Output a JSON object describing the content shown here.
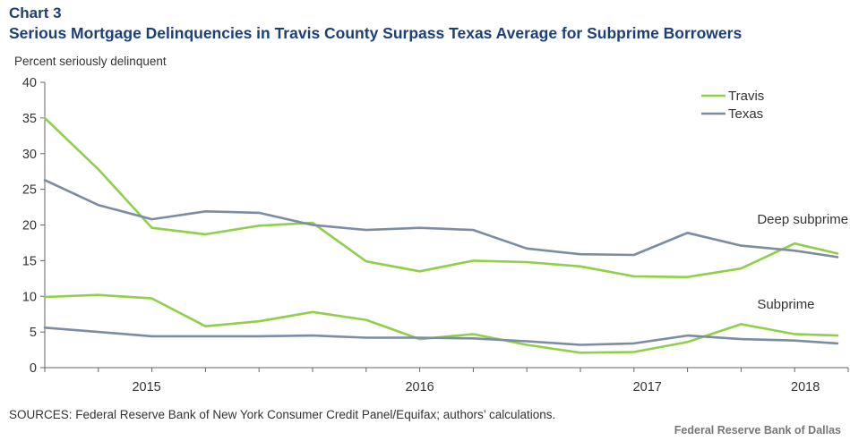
{
  "chart_data": {
    "type": "line",
    "chart_label": "Chart 3",
    "title": "Serious Mortgage Delinquencies in Travis County Surpass Texas Average for Subprime Borrowers",
    "ylabel": "Percent seriously delinquent",
    "xlabel": "",
    "ylim": [
      0,
      40
    ],
    "yticks": [
      "0",
      "5",
      "10",
      "15",
      "20",
      "25",
      "30",
      "35",
      "40"
    ],
    "x_count": 15,
    "year_labels": [
      {
        "label": "2015",
        "at": 1.9
      },
      {
        "label": "2016",
        "at": 7.0
      },
      {
        "label": "2017",
        "at": 11.25
      },
      {
        "label": "2018",
        "at": 14.2
      }
    ],
    "legend": [
      {
        "name": "Travis",
        "color": "#8fcf4a"
      },
      {
        "name": "Texas",
        "color": "#7b8ca3"
      }
    ],
    "annotations": [
      {
        "id": "deep",
        "text": "Deep subprime",
        "x": 13.3,
        "y": 20.2
      },
      {
        "id": "sub",
        "text": "Subprime",
        "x": 13.3,
        "y": 8.3
      }
    ],
    "series": [
      {
        "name": "Travis",
        "group": "Deep subprime",
        "color": "#8fcf4a",
        "values": [
          35.0,
          27.8,
          19.6,
          18.7,
          19.9,
          20.3,
          14.9,
          13.5,
          15.0,
          14.8,
          14.2,
          12.8,
          12.7,
          13.9,
          17.4,
          16.0
        ]
      },
      {
        "name": "Texas",
        "group": "Deep subprime",
        "color": "#7b8ca3",
        "values": [
          26.3,
          22.8,
          20.8,
          21.9,
          21.7,
          20.0,
          19.3,
          19.6,
          19.3,
          16.7,
          15.9,
          15.8,
          18.9,
          17.1,
          16.4,
          15.5
        ]
      },
      {
        "name": "Travis",
        "group": "Subprime",
        "color": "#8fcf4a",
        "values": [
          9.9,
          10.2,
          9.7,
          5.8,
          6.5,
          7.8,
          6.7,
          4.0,
          4.7,
          3.2,
          2.1,
          2.2,
          3.6,
          6.1,
          4.7,
          4.5
        ]
      },
      {
        "name": "Texas",
        "group": "Subprime",
        "color": "#7b8ca3",
        "values": [
          5.6,
          5.0,
          4.4,
          4.4,
          4.4,
          4.5,
          4.2,
          4.2,
          4.1,
          3.7,
          3.2,
          3.4,
          4.5,
          4.0,
          3.8,
          3.4
        ]
      }
    ]
  },
  "footer": {
    "source": "SOURCES: Federal Reserve Bank of New York Consumer Credit Panel/Equifax; authors’ calculations.",
    "credit": "Federal Reserve Bank of Dallas"
  }
}
